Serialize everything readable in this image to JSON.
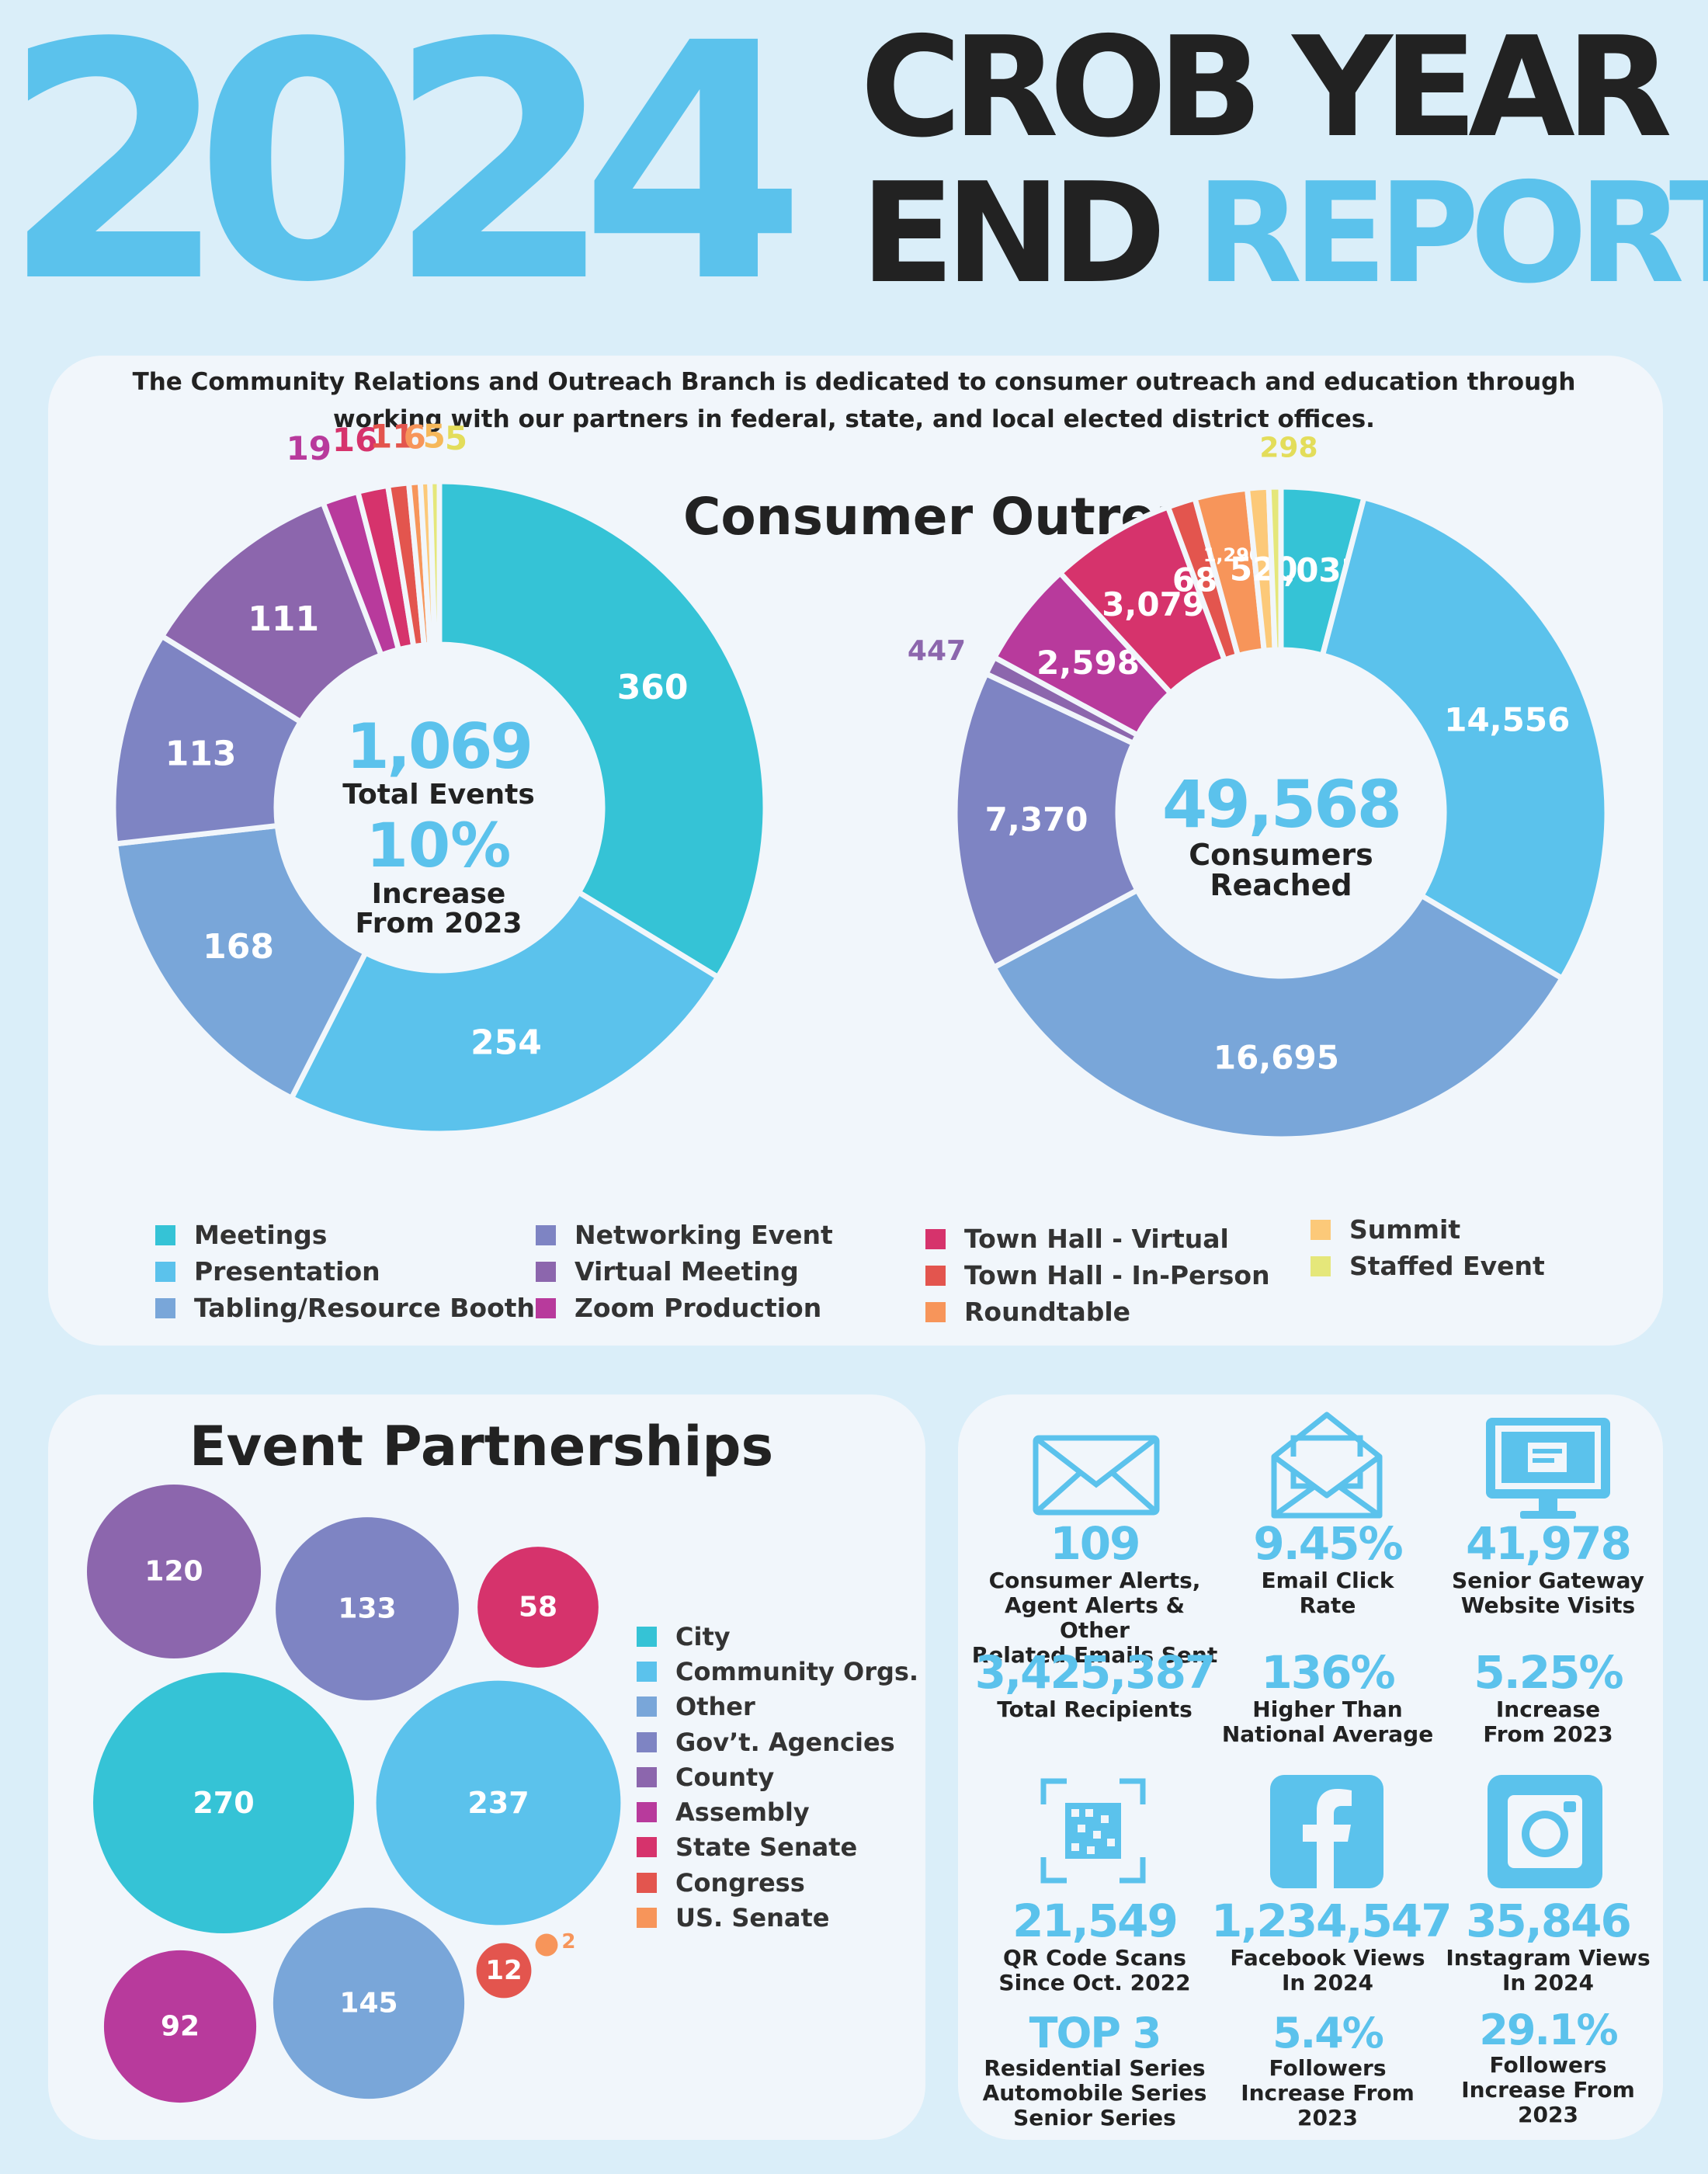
{
  "header": {
    "year": "2024",
    "title_line1": "CROB YEAR",
    "title_line2_dark": "END",
    "title_line2_accent": "REPORT"
  },
  "intro": "The Community Relations and Outreach Branch is dedicated to consumer outreach and education through working with our partners in federal, state, and local elected district offices.",
  "outreach_title": "Consumer Outreach",
  "events_center": {
    "total": "1,069",
    "total_label": "Total Events",
    "increase": "10%",
    "increase_label_1": "Increase",
    "increase_label_2": "From 2023"
  },
  "consumers_center": {
    "total": "49,568",
    "label_1": "Consumers",
    "label_2": "Reached"
  },
  "colors": {
    "Meetings": "#35c3d6",
    "Presentation": "#5bc2ec",
    "Tabling/Resource Booth": "#79a6d9",
    "Networking Event": "#7e84c3",
    "Virtual Meeting": "#8c66ad",
    "Zoom Production": "#b83a9c",
    "Town Hall - Virtual": "#d6336c",
    "Town Hall - In-Person": "#e3554e",
    "Roundtable": "#f7955a",
    "Summit": "#fcc979",
    "Staffed Event": "#e5e77a"
  },
  "chart_data": [
    {
      "type": "pie",
      "title": "",
      "categories": [
        "Meetings",
        "Presentation",
        "Tabling/Resource Booth",
        "Networking Event",
        "Virtual Meeting",
        "Zoom Production",
        "Town Hall - Virtual",
        "Town Hall - In-Person",
        "Roundtable",
        "Summit",
        "Staffed Event"
      ],
      "values": [
        360,
        254,
        168,
        113,
        111,
        19,
        16,
        11,
        6,
        5,
        5
      ],
      "labels": [
        "360",
        "254",
        "168",
        "113",
        "111",
        "19",
        "16",
        "11",
        "6",
        "5",
        "5"
      ],
      "donut": true,
      "legend": "bottom"
    },
    {
      "type": "pie",
      "title": "",
      "categories": [
        "Meetings",
        "Presentation",
        "Tabling/Resource Booth",
        "Networking Event",
        "Virtual Meeting",
        "Zoom Production",
        "Town Hall - Virtual",
        "Town Hall - In-Person",
        "Roundtable",
        "Summit",
        "Staffed Event"
      ],
      "values": [
        2032,
        14556,
        16695,
        7370,
        447,
        2598,
        3079,
        683,
        1290,
        520,
        298
      ],
      "labels": [
        "2,032",
        "14,556",
        "16,695",
        "7,370",
        "447",
        "2,598",
        "3,079",
        "683",
        "1,290",
        "520",
        "298"
      ],
      "donut": true,
      "legend": "bottom"
    },
    {
      "type": "bubble",
      "title": "Event Partnerships",
      "categories": [
        "City",
        "Community Orgs.",
        "Other",
        "Gov’t. Agencies",
        "County",
        "Assembly",
        "State Senate",
        "Congress",
        "US. Senate"
      ],
      "values": [
        270,
        237,
        145,
        133,
        120,
        92,
        58,
        12,
        2
      ],
      "labels": [
        "270",
        "237",
        "145",
        "133",
        "120",
        "92",
        "58",
        "12",
        "2"
      ],
      "colors": [
        "#35c3d6",
        "#5bc2ec",
        "#79a6d9",
        "#7e84c3",
        "#8c66ad",
        "#b83a9c",
        "#d6336c",
        "#e3554e",
        "#f7955a"
      ],
      "legend": "right"
    }
  ],
  "outreach_legend": [
    [
      "Meetings",
      "Presentation",
      "Tabling/Resource Booth"
    ],
    [
      "Networking Event",
      "Virtual Meeting",
      "Zoom Production"
    ],
    [
      "Town Hall - Virtual",
      "Town Hall - In-Person",
      "Roundtable"
    ],
    [
      "Summit",
      "Staffed Event"
    ]
  ],
  "partners_title": "Event Partnerships",
  "stats": {
    "emails": {
      "value": "109",
      "label": "Consumer Alerts,\nAgent Alerts & Other\nRelated Emails Sent",
      "icon": "envelope-icon"
    },
    "recipients": {
      "value": "3,425,387",
      "label": "Total Recipients"
    },
    "click_rate": {
      "value": "9.45%",
      "label": "Email Click\nRate",
      "icon": "open-envelope-icon"
    },
    "higher": {
      "value": "136%",
      "label": "Higher Than\nNational Average"
    },
    "website": {
      "value": "41,978",
      "label": "Senior Gateway\nWebsite Visits",
      "icon": "monitor-icon"
    },
    "website_increase": {
      "value": "5.25%",
      "label": "Increase\nFrom 2023"
    },
    "qr": {
      "value": "21,549",
      "label": "QR Code Scans\nSince Oct. 2022",
      "icon": "qr-code-icon"
    },
    "top3": {
      "value": "TOP 3",
      "label": "Residential Series\nAutomobile Series\nSenior Series"
    },
    "facebook": {
      "value": "1,234,547",
      "label": "Facebook Views\nIn 2024",
      "icon": "facebook-icon"
    },
    "facebook_followers": {
      "value": "5.4%",
      "label": "Followers\nIncrease From\n2023"
    },
    "instagram": {
      "value": "35,846",
      "label": "Instagram Views\nIn 2024",
      "icon": "instagram-icon"
    },
    "instagram_followers": {
      "value": "29.1%",
      "label": "Followers\nIncrease From\n2023"
    }
  }
}
